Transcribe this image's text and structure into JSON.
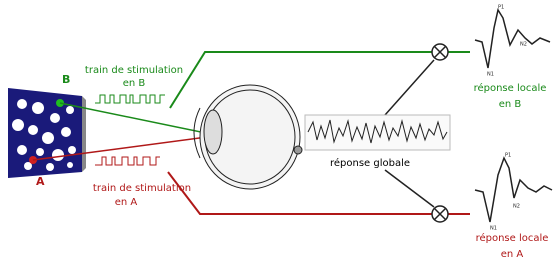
{
  "stimulus": {
    "label_b": "B",
    "label_a": "A"
  },
  "trains": [
    {
      "label": "train de stimulation",
      "sublabel": "en B"
    },
    {
      "label": "train de stimulation",
      "sublabel": "en A"
    }
  ],
  "global_response": "réponse globale",
  "local_responses": [
    {
      "label": "réponse locale",
      "sublabel": "en B",
      "peaks": [
        "P1",
        "N1",
        "N2"
      ]
    },
    {
      "label": "réponse locale",
      "sublabel": "en A",
      "peaks": [
        "P1",
        "N1",
        "N2"
      ]
    }
  ]
}
